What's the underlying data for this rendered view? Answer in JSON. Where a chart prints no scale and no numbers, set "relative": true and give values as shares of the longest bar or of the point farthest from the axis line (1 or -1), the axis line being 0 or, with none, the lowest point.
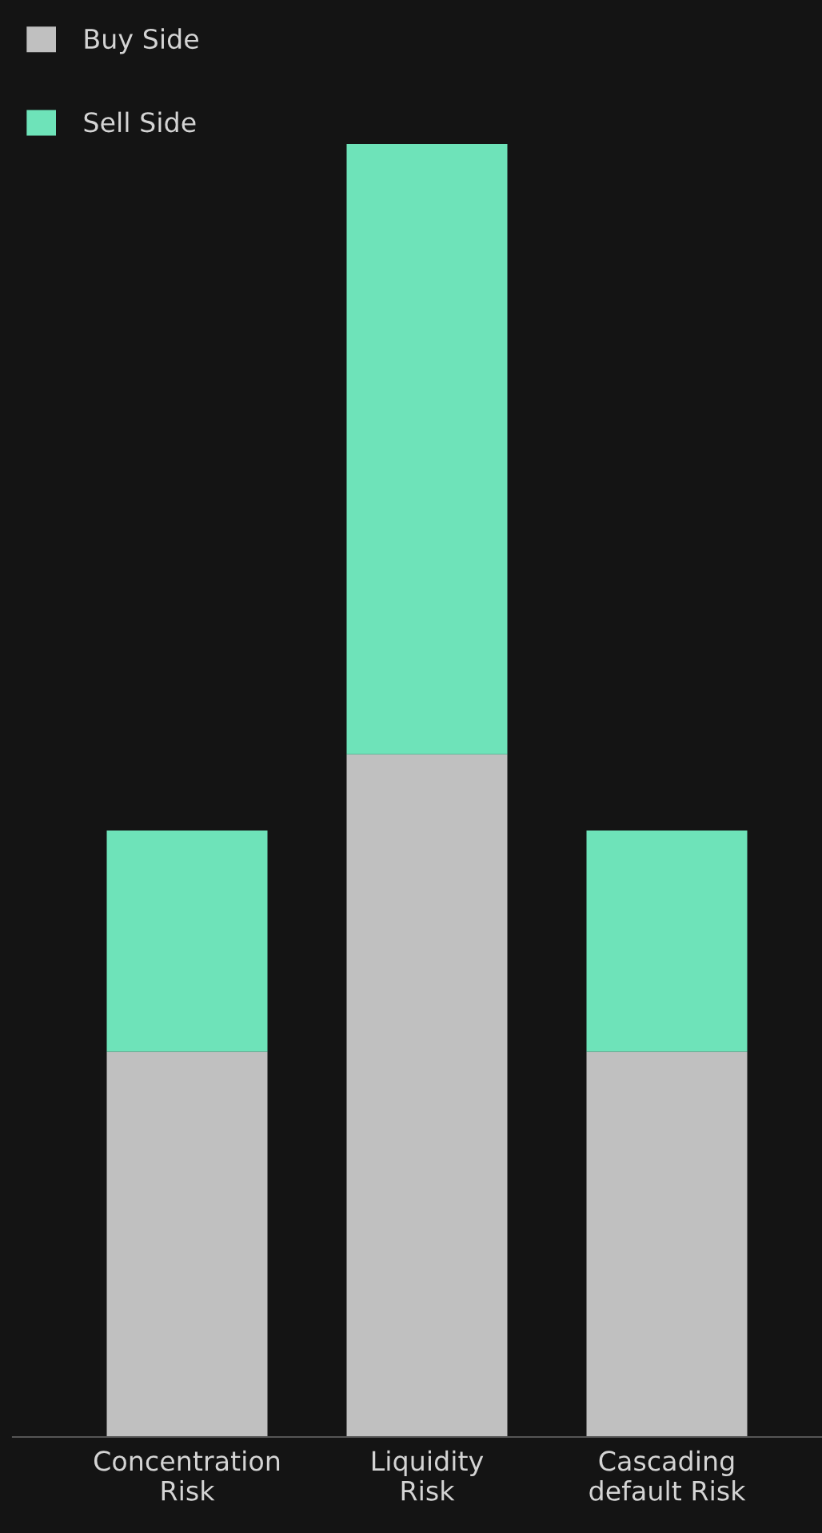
{
  "chart_data": {
    "type": "bar",
    "stacked": true,
    "relative": true,
    "legend": "top left",
    "categories": [
      "Concentration Risk",
      "Liquidity Risk",
      "Cascading default Risk"
    ],
    "series": [
      {
        "name": "Buy Side",
        "color": "#c0c0c0",
        "values": [
          0.298,
          0.528,
          0.298
        ]
      },
      {
        "name": "Sell Side",
        "color": "#6ee3b9",
        "values": [
          0.171,
          0.472,
          0.171
        ]
      }
    ]
  }
}
